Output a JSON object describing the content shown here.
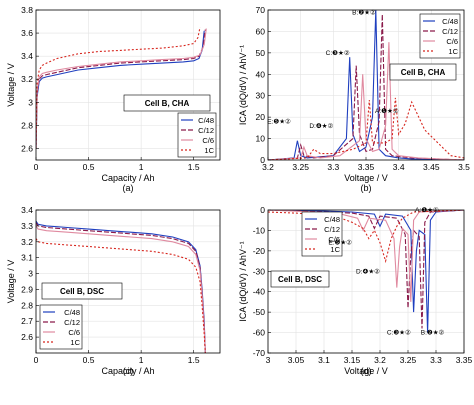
{
  "chart_data": [
    {
      "id": "a",
      "type": "line",
      "caption": "(a)",
      "xlabel": "Capacity / Ah",
      "ylabel": "Voltage / V",
      "xlim": [
        0,
        1.75
      ],
      "ylim": [
        2.5,
        3.8
      ],
      "xticks": [
        0,
        0.5,
        1,
        1.5
      ],
      "yticks": [
        2.6,
        2.8,
        3.0,
        3.2,
        3.4,
        3.6,
        3.8
      ],
      "xtick_labels": [
        "0",
        "0.5",
        "1",
        "1.5"
      ],
      "ytick_labels": [
        "2.6",
        "2.8",
        "3",
        "3.2",
        "3.4",
        "3.6",
        "3.8"
      ],
      "grid": true,
      "cell_label": "Cell B, CHA",
      "legend_position": "bottom-right",
      "series": [
        {
          "name": "C/48",
          "x": [
            0,
            0.01,
            0.03,
            0.06,
            0.1,
            0.2,
            0.4,
            0.6,
            0.8,
            1.0,
            1.2,
            1.4,
            1.5,
            1.55,
            1.58,
            1.6
          ],
          "y": [
            2.6,
            3.05,
            3.18,
            3.21,
            3.22,
            3.24,
            3.28,
            3.3,
            3.32,
            3.33,
            3.34,
            3.35,
            3.36,
            3.38,
            3.45,
            3.62
          ]
        },
        {
          "name": "C/12",
          "x": [
            0,
            0.01,
            0.03,
            0.06,
            0.1,
            0.2,
            0.4,
            0.6,
            0.8,
            1.0,
            1.2,
            1.4,
            1.5,
            1.55,
            1.59,
            1.61
          ],
          "y": [
            2.6,
            3.08,
            3.2,
            3.23,
            3.24,
            3.26,
            3.3,
            3.32,
            3.34,
            3.35,
            3.36,
            3.37,
            3.38,
            3.4,
            3.48,
            3.63
          ]
        },
        {
          "name": "C/6",
          "x": [
            0,
            0.01,
            0.03,
            0.06,
            0.1,
            0.2,
            0.4,
            0.6,
            0.8,
            1.0,
            1.2,
            1.4,
            1.5,
            1.56,
            1.6,
            1.62
          ],
          "y": [
            2.6,
            3.1,
            3.22,
            3.25,
            3.26,
            3.28,
            3.31,
            3.33,
            3.35,
            3.36,
            3.37,
            3.38,
            3.39,
            3.41,
            3.5,
            3.64
          ]
        },
        {
          "name": "1C",
          "x": [
            0,
            0.01,
            0.03,
            0.06,
            0.1,
            0.2,
            0.4,
            0.6,
            0.8,
            1.0,
            1.2,
            1.4,
            1.5,
            1.54,
            1.56
          ],
          "y": [
            2.6,
            3.16,
            3.28,
            3.32,
            3.34,
            3.38,
            3.42,
            3.44,
            3.45,
            3.46,
            3.47,
            3.49,
            3.51,
            3.56,
            3.65
          ]
        }
      ]
    },
    {
      "id": "b",
      "type": "line",
      "caption": "(b)",
      "xlabel": "Voltage / V",
      "ylabel": "ICA (dQ/dV) / AhV⁻¹",
      "xlim": [
        3.2,
        3.5
      ],
      "ylim": [
        0,
        70
      ],
      "xticks": [
        3.2,
        3.25,
        3.3,
        3.35,
        3.4,
        3.45,
        3.5
      ],
      "yticks": [
        0,
        10,
        20,
        30,
        40,
        50,
        60,
        70
      ],
      "xtick_labels": [
        "3.2",
        "3.25",
        "3.3",
        "3.35",
        "3.4",
        "3.45",
        "3.5"
      ],
      "ytick_labels": [
        "0",
        "10",
        "20",
        "30",
        "40",
        "50",
        "60",
        "70"
      ],
      "grid": true,
      "cell_label": "Cell B, CHA",
      "legend_position": "top-right",
      "annotations": [
        {
          "text": "B:❷★②",
          "x": 3.365,
          "y": 68
        },
        {
          "text": "C:❸★②",
          "x": 3.325,
          "y": 49
        },
        {
          "text": "A:❶★①",
          "x": 3.4,
          "y": 22
        },
        {
          "text": "D:❹★②",
          "x": 3.3,
          "y": 15
        },
        {
          "text": "E:❺★②",
          "x": 3.235,
          "y": 17
        }
      ],
      "series": [
        {
          "name": "C/48",
          "x": [
            3.2,
            3.24,
            3.245,
            3.25,
            3.26,
            3.3,
            3.32,
            3.325,
            3.33,
            3.34,
            3.35,
            3.36,
            3.365,
            3.37,
            3.38,
            3.4,
            3.42,
            3.5
          ],
          "y": [
            0,
            1,
            9,
            2,
            1,
            2,
            10,
            48,
            12,
            4,
            6,
            20,
            70,
            5,
            2,
            1,
            0.5,
            0
          ]
        },
        {
          "name": "C/12",
          "x": [
            3.2,
            3.245,
            3.25,
            3.255,
            3.27,
            3.3,
            3.33,
            3.335,
            3.34,
            3.35,
            3.36,
            3.37,
            3.375,
            3.38,
            3.39,
            3.42,
            3.5
          ],
          "y": [
            0,
            1,
            7,
            2,
            1,
            2,
            10,
            44,
            12,
            4,
            5,
            18,
            68,
            5,
            2,
            1,
            0
          ]
        },
        {
          "name": "C/6",
          "x": [
            3.2,
            3.25,
            3.255,
            3.26,
            3.28,
            3.31,
            3.34,
            3.345,
            3.35,
            3.36,
            3.37,
            3.38,
            3.385,
            3.39,
            3.4,
            3.43,
            3.5
          ],
          "y": [
            0,
            1,
            6,
            2,
            1,
            2,
            9,
            40,
            10,
            4,
            5,
            16,
            55,
            5,
            2,
            1,
            0
          ]
        },
        {
          "name": "1C",
          "x": [
            3.2,
            3.26,
            3.27,
            3.28,
            3.3,
            3.33,
            3.35,
            3.355,
            3.36,
            3.38,
            3.39,
            3.395,
            3.4,
            3.41,
            3.42,
            3.44,
            3.46,
            3.48,
            3.5
          ],
          "y": [
            0,
            1,
            5,
            3,
            3,
            5,
            8,
            28,
            8,
            8,
            10,
            29,
            12,
            17,
            27,
            14,
            8,
            2,
            1
          ]
        }
      ]
    },
    {
      "id": "c",
      "type": "line",
      "caption": "(c)",
      "xlabel": "Capacity / Ah",
      "ylabel": "Voltage / V",
      "xlim": [
        0,
        1.75
      ],
      "ylim": [
        2.5,
        3.4
      ],
      "xticks": [
        0,
        0.5,
        1,
        1.5
      ],
      "yticks": [
        2.6,
        2.7,
        2.8,
        2.9,
        3.0,
        3.1,
        3.2,
        3.3,
        3.4
      ],
      "xtick_labels": [
        "0",
        "0.5",
        "1",
        "1.5"
      ],
      "ytick_labels": [
        "2.6",
        "2.7",
        "2.8",
        "2.9",
        "3",
        "3.1",
        "3.2",
        "3.3",
        "3.4"
      ],
      "grid": true,
      "cell_label": "Cell B, DSC",
      "legend_position": "bottom-left",
      "series": [
        {
          "name": "C/48",
          "x": [
            0,
            0.02,
            0.1,
            0.3,
            0.5,
            0.7,
            0.9,
            1.1,
            1.3,
            1.45,
            1.52,
            1.56,
            1.58,
            1.6,
            1.61
          ],
          "y": [
            3.33,
            3.31,
            3.3,
            3.29,
            3.28,
            3.27,
            3.26,
            3.25,
            3.23,
            3.2,
            3.15,
            3.05,
            2.9,
            2.7,
            2.5
          ]
        },
        {
          "name": "C/12",
          "x": [
            0,
            0.02,
            0.1,
            0.3,
            0.5,
            0.7,
            0.9,
            1.1,
            1.3,
            1.45,
            1.52,
            1.56,
            1.58,
            1.6,
            1.61
          ],
          "y": [
            3.32,
            3.3,
            3.29,
            3.28,
            3.27,
            3.26,
            3.25,
            3.24,
            3.22,
            3.19,
            3.14,
            3.04,
            2.88,
            2.68,
            2.5
          ]
        },
        {
          "name": "C/6",
          "x": [
            0,
            0.02,
            0.1,
            0.3,
            0.5,
            0.7,
            0.9,
            1.1,
            1.3,
            1.45,
            1.52,
            1.56,
            1.58,
            1.6,
            1.61
          ],
          "y": [
            3.3,
            3.28,
            3.27,
            3.26,
            3.25,
            3.24,
            3.23,
            3.22,
            3.2,
            3.17,
            3.12,
            3.02,
            2.86,
            2.66,
            2.5
          ]
        },
        {
          "name": "1C",
          "x": [
            0,
            0.02,
            0.1,
            0.3,
            0.5,
            0.7,
            0.9,
            1.1,
            1.3,
            1.45,
            1.52,
            1.56,
            1.58,
            1.6,
            1.61
          ],
          "y": [
            3.22,
            3.2,
            3.19,
            3.18,
            3.17,
            3.16,
            3.15,
            3.14,
            3.12,
            3.09,
            3.04,
            2.95,
            2.8,
            2.62,
            2.5
          ]
        }
      ]
    },
    {
      "id": "d",
      "type": "line",
      "caption": "(d)",
      "xlabel": "Voltage / V",
      "ylabel": "ICA (dQ/dV) / AhV⁻¹",
      "xlim": [
        3.0,
        3.35
      ],
      "ylim": [
        -70,
        0
      ],
      "xticks": [
        3.0,
        3.05,
        3.1,
        3.15,
        3.2,
        3.25,
        3.3,
        3.35
      ],
      "yticks": [
        0,
        -10,
        -20,
        -30,
        -40,
        -50,
        -60,
        -70
      ],
      "xtick_labels": [
        "3",
        "3.05",
        "3.1",
        "3.15",
        "3.2",
        "3.25",
        "3.3",
        "3.35"
      ],
      "ytick_labels": [
        "0",
        "-10",
        "-20",
        "-30",
        "-40",
        "-50",
        "-60",
        "-70"
      ],
      "grid": true,
      "cell_label": "Cell B, DSC",
      "legend_position": "top-right",
      "annotations": [
        {
          "text": "A:❶★①",
          "x": 3.305,
          "y": -1
        },
        {
          "text": "E:❺★②",
          "x": 3.15,
          "y": -17
        },
        {
          "text": "D:❹★②",
          "x": 3.2,
          "y": -31
        },
        {
          "text": "C:❸★②",
          "x": 3.255,
          "y": -61
        },
        {
          "text": "B:❷★②",
          "x": 3.315,
          "y": -61
        }
      ],
      "series": [
        {
          "name": "C/48",
          "x": [
            3.0,
            3.1,
            3.15,
            3.19,
            3.2,
            3.21,
            3.24,
            3.255,
            3.26,
            3.265,
            3.27,
            3.28,
            3.285,
            3.29,
            3.3,
            3.35
          ],
          "y": [
            0,
            -0.5,
            -1,
            -2,
            -8,
            -2,
            -3,
            -10,
            -50,
            -20,
            -10,
            -12,
            -60,
            -5,
            -1,
            0
          ]
        },
        {
          "name": "C/12",
          "x": [
            3.0,
            3.1,
            3.15,
            3.18,
            3.19,
            3.2,
            3.23,
            3.245,
            3.25,
            3.255,
            3.26,
            3.27,
            3.275,
            3.28,
            3.29,
            3.35
          ],
          "y": [
            0,
            -1,
            -1.5,
            -3,
            -9,
            -3,
            -4,
            -12,
            -48,
            -22,
            -10,
            -13,
            -58,
            -6,
            -1,
            0
          ]
        },
        {
          "name": "C/6",
          "x": [
            3.0,
            3.08,
            3.13,
            3.16,
            3.17,
            3.18,
            3.21,
            3.225,
            3.23,
            3.235,
            3.24,
            3.25,
            3.255,
            3.26,
            3.27,
            3.35
          ],
          "y": [
            0,
            -1,
            -2,
            -4,
            -10,
            -4,
            -5,
            -14,
            -38,
            -18,
            -9,
            -12,
            -45,
            -5,
            -1,
            0
          ]
        },
        {
          "name": "1C",
          "x": [
            3.0,
            3.05,
            3.1,
            3.13,
            3.15,
            3.17,
            3.18,
            3.19,
            3.2,
            3.21,
            3.22,
            3.23,
            3.24,
            3.26,
            3.35
          ],
          "y": [
            -1,
            -1.5,
            -2.5,
            -4,
            -6,
            -9,
            -14,
            -10,
            -16,
            -25,
            -14,
            -8,
            -4,
            -1,
            0
          ]
        }
      ]
    }
  ],
  "style": {
    "series_colors": [
      "#1f3fbf",
      "#8a1a4a",
      "#e08aa0",
      "#d7261e"
    ],
    "series_dashes": [
      "",
      "5,2",
      "",
      "2,2"
    ]
  }
}
